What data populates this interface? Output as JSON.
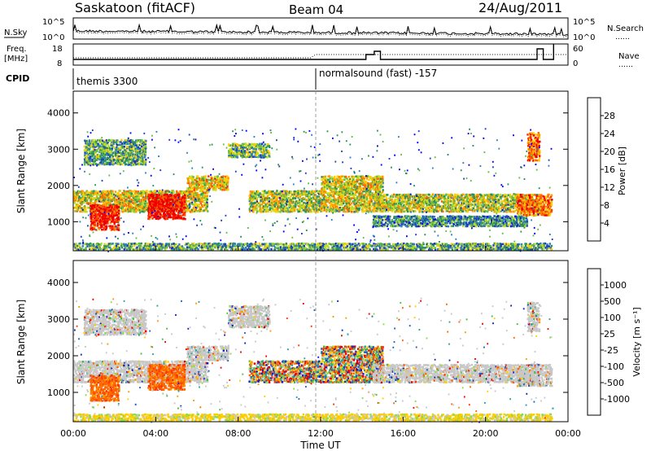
{
  "header": {
    "station": "Saskatoon (fitACF)",
    "beam": "Beam 04",
    "date": "24/Aug/2011"
  },
  "panel_labels": {
    "nsky": "N.Sky",
    "nsearch": "N.Search",
    "freq_line1": "Freq.",
    "freq_line2": "[MHz]",
    "nave": "Nave",
    "cpid": "CPID"
  },
  "noise_ticks": {
    "high": "10^5",
    "low": "10^0"
  },
  "freq_ticks": {
    "left": [
      "18",
      "8"
    ],
    "right": [
      "60",
      "0"
    ]
  },
  "cpid_labels": [
    "themis 3300",
    "normalsound (fast) -157"
  ],
  "legend_lines": {
    "nsearch": "……",
    "nave": "……"
  },
  "chart_data": [
    {
      "type": "heatmap",
      "name": "power",
      "ylabel": "Slant Range [km]",
      "yticks": [
        "1000",
        "2000",
        "3000",
        "4000"
      ],
      "ylim": [
        200,
        4600
      ],
      "colorbar": {
        "label": "Power [dB]",
        "ticks": [
          "4",
          "8",
          "12",
          "16",
          "20",
          "24",
          "28"
        ],
        "colors": [
          "#0000ff",
          "#1e3fbf",
          "#2e7fbf",
          "#2a8f5a",
          "#66bb44",
          "#bbdd22",
          "#ffcc00",
          "#ff9900",
          "#ff6600",
          "#ff3300",
          "#ee0000"
        ]
      },
      "echo_bands": [
        {
          "t0": 0.0,
          "t1": 6.5,
          "r0": 1300,
          "r1": 1900,
          "level": 0.55
        },
        {
          "t0": 0.8,
          "t1": 2.2,
          "r0": 800,
          "r1": 1500,
          "level": 0.95
        },
        {
          "t0": 3.6,
          "t1": 5.4,
          "r0": 1100,
          "r1": 1800,
          "level": 1.0
        },
        {
          "t0": 0.5,
          "t1": 3.5,
          "r0": 2600,
          "r1": 3300,
          "level": 0.35
        },
        {
          "t0": 5.5,
          "t1": 7.5,
          "r0": 1900,
          "r1": 2300,
          "level": 0.6
        },
        {
          "t0": 7.5,
          "t1": 9.5,
          "r0": 2800,
          "r1": 3200,
          "level": 0.4
        },
        {
          "t0": 8.5,
          "t1": 12.0,
          "r0": 1300,
          "r1": 1900,
          "level": 0.5
        },
        {
          "t0": 12.0,
          "t1": 15.0,
          "r0": 1300,
          "r1": 2300,
          "level": 0.55
        },
        {
          "t0": 14.5,
          "t1": 22.5,
          "r0": 1300,
          "r1": 1800,
          "level": 0.5
        },
        {
          "t0": 14.5,
          "t1": 22.0,
          "r0": 900,
          "r1": 1200,
          "level": 0.3
        },
        {
          "t0": 22.0,
          "t1": 22.6,
          "r0": 2700,
          "r1": 3500,
          "level": 0.8
        },
        {
          "t0": 21.5,
          "t1": 23.2,
          "r0": 1200,
          "r1": 1800,
          "level": 0.75
        },
        {
          "t0": 0.0,
          "t1": 23.2,
          "r0": 250,
          "r1": 450,
          "level": 0.35
        }
      ]
    },
    {
      "type": "heatmap",
      "name": "velocity",
      "ylabel": "Slant Range [km]",
      "yticks": [
        "1000",
        "2000",
        "3000",
        "4000"
      ],
      "ylim": [
        200,
        4600
      ],
      "xlabel": "Time UT",
      "xticks": [
        "00:00",
        "04:00",
        "08:00",
        "12:00",
        "16:00",
        "20:00",
        "00:00"
      ],
      "xlim": [
        0,
        24
      ],
      "colorbar": {
        "label": "Velocity [m s⁻¹]",
        "ticks": [
          "1000",
          "500",
          "100",
          "25",
          "-25",
          "-100",
          "-500",
          "-1000"
        ],
        "colors": [
          "#1020c0",
          "#2060c0",
          "#2aa0a0",
          "#44bb44",
          "#88dd44",
          "#c8c8c8",
          "#ffcc00",
          "#ff9900",
          "#ff6600",
          "#ff3300",
          "#ee0000"
        ]
      },
      "echo_bands": [
        {
          "t0": 0.0,
          "t1": 6.5,
          "r0": 1300,
          "r1": 1900,
          "tone": "grey"
        },
        {
          "t0": 0.8,
          "t1": 2.2,
          "r0": 800,
          "r1": 1500,
          "tone": "orange"
        },
        {
          "t0": 3.6,
          "t1": 5.4,
          "r0": 1100,
          "r1": 1800,
          "tone": "orange"
        },
        {
          "t0": 0.5,
          "t1": 3.5,
          "r0": 2600,
          "r1": 3300,
          "tone": "grey"
        },
        {
          "t0": 5.5,
          "t1": 7.5,
          "r0": 1900,
          "r1": 2300,
          "tone": "grey"
        },
        {
          "t0": 7.5,
          "t1": 9.5,
          "r0": 2800,
          "r1": 3400,
          "tone": "grey"
        },
        {
          "t0": 8.5,
          "t1": 12.0,
          "r0": 1300,
          "r1": 1900,
          "tone": "mixed"
        },
        {
          "t0": 12.0,
          "t1": 15.0,
          "r0": 1300,
          "r1": 2300,
          "tone": "mixed"
        },
        {
          "t0": 14.5,
          "t1": 22.5,
          "r0": 1300,
          "r1": 1800,
          "tone": "grey"
        },
        {
          "t0": 22.0,
          "t1": 22.6,
          "r0": 2700,
          "r1": 3500,
          "tone": "grey"
        },
        {
          "t0": 21.5,
          "t1": 23.2,
          "r0": 1200,
          "r1": 1800,
          "tone": "grey"
        },
        {
          "t0": 0.0,
          "t1": 23.2,
          "r0": 250,
          "r1": 450,
          "tone": "yellow"
        }
      ]
    }
  ]
}
